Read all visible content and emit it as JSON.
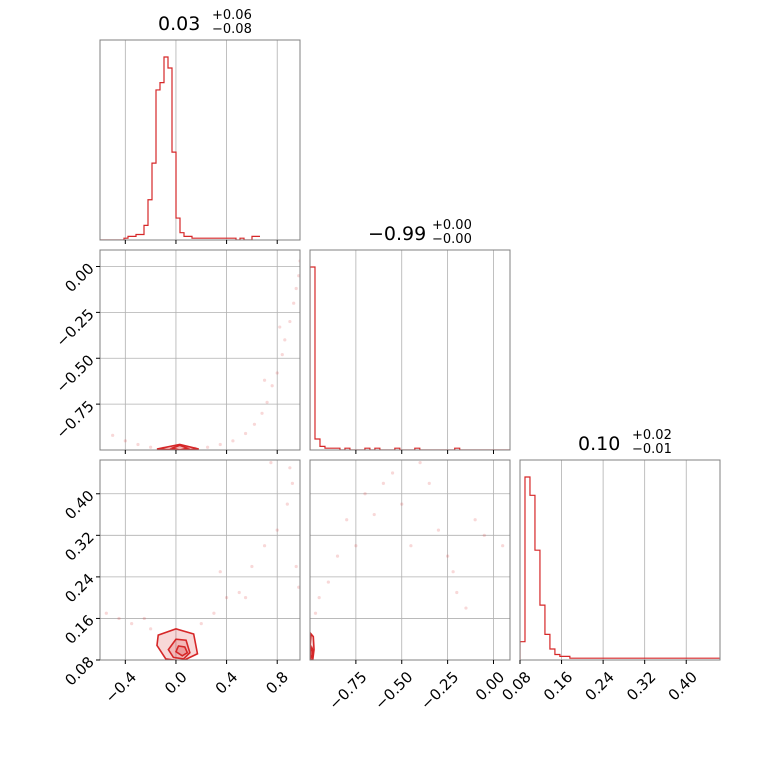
{
  "chart_data": {
    "type": "corner",
    "colors": {
      "line": "#d62728",
      "axes": "#808080",
      "grid": "#b0b0b0",
      "text": "#000000"
    },
    "grid": true,
    "parameters": [
      {
        "median": "0.03",
        "plus": "+0.06",
        "minus": "−0.08",
        "range": [
          -0.6,
          0.98
        ],
        "ticks": [
          -0.4,
          0.0,
          0.4,
          0.8
        ],
        "tick_labels": [
          "−0.4",
          "0.0",
          "0.4",
          "0.8"
        ]
      },
      {
        "median": "−0.99",
        "plus": "+0.00",
        "minus": "−0.00",
        "range": [
          -1.0,
          0.09
        ],
        "ticks": [
          -0.75,
          -0.5,
          -0.25,
          0.0
        ],
        "tick_labels": [
          "−0.75",
          "−0.50",
          "−0.25",
          "0.00"
        ]
      },
      {
        "median": "0.10",
        "plus": "+0.02",
        "minus": "−0.01",
        "range": [
          0.08,
          0.465
        ],
        "ticks": [
          0.08,
          0.16,
          0.24,
          0.32,
          0.4
        ],
        "tick_labels": [
          "0.08",
          "0.16",
          "0.24",
          "0.32",
          "0.40"
        ]
      }
    ],
    "histograms": [
      {
        "param": 0,
        "bin_start": -0.6,
        "bin_width": 0.0316,
        "counts": [
          0,
          0,
          0,
          0,
          0,
          0,
          1,
          2,
          2,
          3,
          3,
          8,
          22,
          42,
          82,
          86,
          100,
          94,
          48,
          12,
          4,
          2,
          2,
          1,
          1,
          1,
          1,
          1,
          1,
          1,
          1,
          1,
          1,
          1,
          0,
          1,
          0,
          0,
          2,
          2
        ]
      },
      {
        "param": 1,
        "bin_start": -1.0,
        "bin_width": 0.0272,
        "counts": [
          100,
          6,
          2,
          1,
          1,
          1,
          0,
          1,
          0,
          0,
          0,
          1,
          0,
          1,
          0,
          0,
          0,
          1,
          0,
          0,
          0,
          1,
          0,
          0,
          0,
          0,
          0,
          0,
          0,
          1,
          0,
          0,
          0,
          0,
          0,
          0,
          0,
          0,
          0,
          0
        ]
      },
      {
        "param": 2,
        "bin_start": 0.08,
        "bin_width": 0.0096,
        "counts": [
          10,
          100,
          90,
          60,
          30,
          14,
          6,
          3,
          2,
          2,
          1,
          1,
          1,
          1,
          1,
          1,
          1,
          1,
          1,
          1,
          1,
          1,
          1,
          1,
          1,
          1,
          1,
          1,
          1,
          1,
          1,
          1,
          1,
          1,
          1,
          1,
          1,
          1,
          1,
          1
        ]
      }
    ],
    "pairs": [
      {
        "x": 0,
        "y": 1,
        "contours": [
          [
            [
              -0.03,
              -0.99
            ],
            [
              0.03,
              -0.975
            ],
            [
              0.09,
              -0.99
            ],
            [
              0.03,
              -1.0
            ],
            [
              -0.03,
              -0.99
            ]
          ],
          [
            [
              -0.15,
              -0.995
            ],
            [
              0.03,
              -0.97
            ],
            [
              0.18,
              -0.995
            ],
            [
              0.03,
              -1.0
            ],
            [
              -0.15,
              -0.995
            ]
          ]
        ],
        "points": [
          [
            -0.5,
            -0.92
          ],
          [
            -0.4,
            -0.95
          ],
          [
            -0.3,
            -0.97
          ],
          [
            -0.2,
            -0.985
          ],
          [
            -0.1,
            -0.99
          ],
          [
            0.15,
            -0.99
          ],
          [
            0.25,
            -0.985
          ],
          [
            0.35,
            -0.97
          ],
          [
            0.45,
            -0.95
          ],
          [
            0.55,
            -0.91
          ],
          [
            0.62,
            -0.86
          ],
          [
            0.68,
            -0.8
          ],
          [
            0.72,
            -0.74
          ],
          [
            0.76,
            -0.65
          ],
          [
            0.8,
            -0.58
          ],
          [
            0.84,
            -0.48
          ],
          [
            0.86,
            -0.4
          ],
          [
            0.9,
            -0.3
          ],
          [
            0.93,
            -0.2
          ],
          [
            0.95,
            -0.12
          ],
          [
            0.97,
            -0.05
          ],
          [
            0.98,
            0.03
          ],
          [
            0.7,
            -0.62
          ],
          [
            0.82,
            -0.33
          ]
        ]
      },
      {
        "x": 0,
        "y": 2,
        "contours": [
          [
            [
              0.0,
              0.096
            ],
            [
              0.05,
              0.088
            ],
            [
              0.09,
              0.094
            ],
            [
              0.07,
              0.105
            ],
            [
              0.02,
              0.107
            ],
            [
              0.0,
              0.096
            ]
          ],
          [
            [
              -0.06,
              0.1
            ],
            [
              -0.02,
              0.085
            ],
            [
              0.06,
              0.082
            ],
            [
              0.11,
              0.094
            ],
            [
              0.08,
              0.118
            ],
            [
              0.0,
              0.12
            ],
            [
              -0.06,
              0.1
            ]
          ],
          [
            [
              -0.15,
              0.108
            ],
            [
              -0.08,
              0.082
            ],
            [
              0.05,
              0.078
            ],
            [
              0.17,
              0.092
            ],
            [
              0.14,
              0.13
            ],
            [
              0.0,
              0.14
            ],
            [
              -0.14,
              0.128
            ],
            [
              -0.15,
              0.108
            ]
          ]
        ],
        "points": [
          [
            -0.55,
            0.17
          ],
          [
            -0.45,
            0.16
          ],
          [
            -0.35,
            0.15
          ],
          [
            -0.25,
            0.16
          ],
          [
            -0.2,
            0.14
          ],
          [
            0.2,
            0.15
          ],
          [
            0.3,
            0.17
          ],
          [
            0.4,
            0.2
          ],
          [
            0.5,
            0.21
          ],
          [
            0.35,
            0.25
          ],
          [
            0.6,
            0.26
          ],
          [
            0.7,
            0.3
          ],
          [
            0.8,
            0.33
          ],
          [
            0.88,
            0.38
          ],
          [
            0.92,
            0.42
          ],
          [
            0.95,
            0.26
          ],
          [
            0.97,
            0.22
          ],
          [
            0.9,
            0.45
          ],
          [
            0.75,
            0.46
          ],
          [
            0.55,
            0.2
          ]
        ]
      },
      {
        "x": 1,
        "y": 2,
        "contours": [
          [
            [
              -0.995,
              0.088
            ],
            [
              -0.99,
              0.085
            ],
            [
              -0.985,
              0.09
            ],
            [
              -0.985,
              0.1
            ],
            [
              -0.99,
              0.104
            ],
            [
              -0.995,
              0.096
            ],
            [
              -0.995,
              0.088
            ]
          ],
          [
            [
              -0.998,
              0.082
            ],
            [
              -0.985,
              0.08
            ],
            [
              -0.978,
              0.1
            ],
            [
              -0.982,
              0.125
            ],
            [
              -0.994,
              0.13
            ],
            [
              -0.999,
              0.11
            ],
            [
              -0.998,
              0.082
            ]
          ]
        ],
        "points": [
          [
            -0.97,
            0.17
          ],
          [
            -0.95,
            0.2
          ],
          [
            -0.9,
            0.23
          ],
          [
            -0.85,
            0.28
          ],
          [
            -0.8,
            0.35
          ],
          [
            -0.7,
            0.4
          ],
          [
            -0.6,
            0.42
          ],
          [
            -0.55,
            0.44
          ],
          [
            -0.5,
            0.38
          ],
          [
            -0.45,
            0.3
          ],
          [
            -0.4,
            0.46
          ],
          [
            -0.35,
            0.42
          ],
          [
            -0.3,
            0.33
          ],
          [
            -0.25,
            0.28
          ],
          [
            -0.22,
            0.25
          ],
          [
            -0.2,
            0.21
          ],
          [
            -0.15,
            0.18
          ],
          [
            -0.1,
            0.35
          ],
          [
            -0.05,
            0.32
          ],
          [
            0.05,
            0.3
          ],
          [
            -0.65,
            0.36
          ],
          [
            -0.75,
            0.3
          ]
        ]
      }
    ]
  }
}
